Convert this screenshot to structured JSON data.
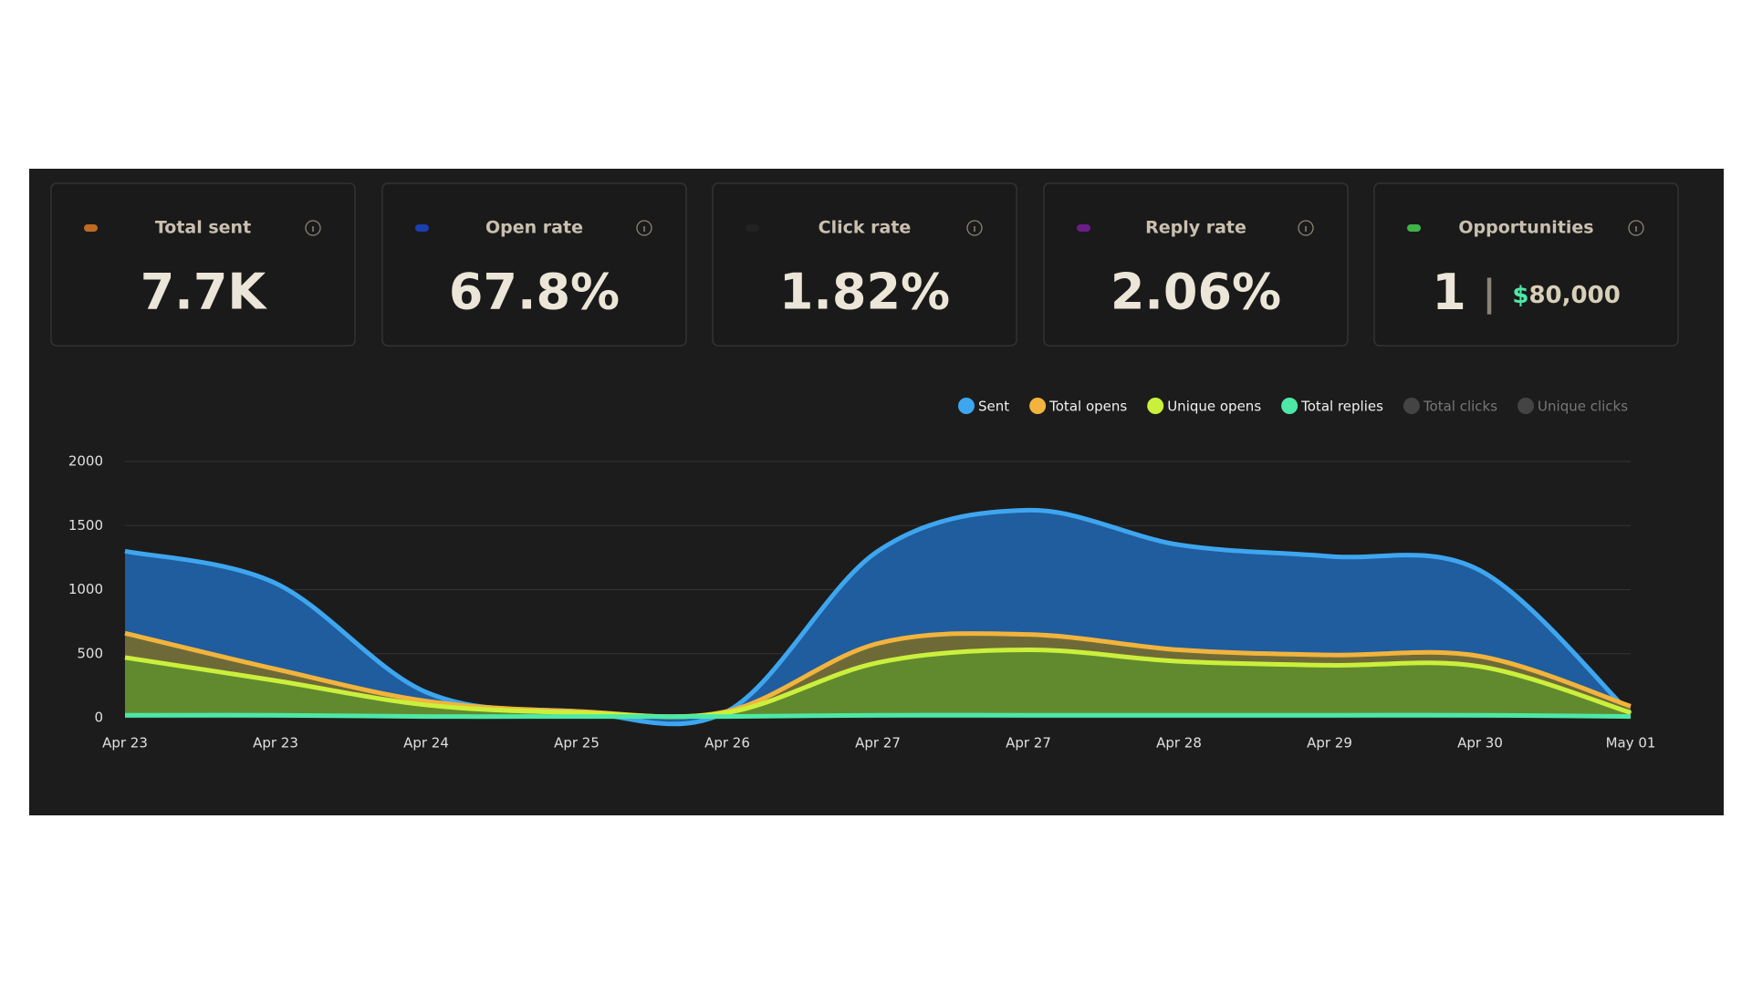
{
  "cards": [
    {
      "title": "Total sent",
      "value": "7.7K",
      "dot": "#c06a22"
    },
    {
      "title": "Open rate",
      "value": "67.8%",
      "dot": "#1a3fb0"
    },
    {
      "title": "Click rate",
      "value": "1.82%",
      "dot": "#222222"
    },
    {
      "title": "Reply rate",
      "value": "2.06%",
      "dot": "#6a1d8a"
    },
    {
      "title": "Opportunities",
      "value": "1",
      "currency": "$",
      "amount": "80,000",
      "dot": "#3fb54a"
    }
  ],
  "chart_data": {
    "type": "area",
    "categories": [
      "Apr 23",
      "Apr 23",
      "Apr 24",
      "Apr 25",
      "Apr 26",
      "Apr 27",
      "Apr 27",
      "Apr 28",
      "Apr 29",
      "Apr 30",
      "May 01"
    ],
    "series": [
      {
        "name": "Sent",
        "color": "#3ea6ef",
        "fill": "#1f5d9f",
        "values": [
          1300,
          1050,
          200,
          50,
          50,
          1300,
          1620,
          1350,
          1260,
          1150,
          30
        ]
      },
      {
        "name": "Total opens",
        "color": "#f2b43c",
        "fill": "#6e6a38",
        "values": [
          660,
          380,
          130,
          50,
          50,
          580,
          650,
          530,
          490,
          480,
          90
        ]
      },
      {
        "name": "Unique opens",
        "color": "#cbf03c",
        "fill": "#618a2e",
        "values": [
          470,
          290,
          100,
          40,
          40,
          430,
          530,
          440,
          410,
          400,
          40
        ]
      },
      {
        "name": "Total replies",
        "color": "#4de8a6",
        "fill": "#2a6b58",
        "values": [
          20,
          20,
          10,
          10,
          10,
          20,
          20,
          20,
          20,
          20,
          10
        ]
      },
      {
        "name": "Total clicks",
        "color": "#444444",
        "hidden": true
      },
      {
        "name": "Unique clicks",
        "color": "#444444",
        "hidden": true
      }
    ],
    "ylim": [
      0,
      2000
    ],
    "yticks": [
      0,
      500,
      1000,
      1500,
      2000
    ],
    "grid": true
  }
}
